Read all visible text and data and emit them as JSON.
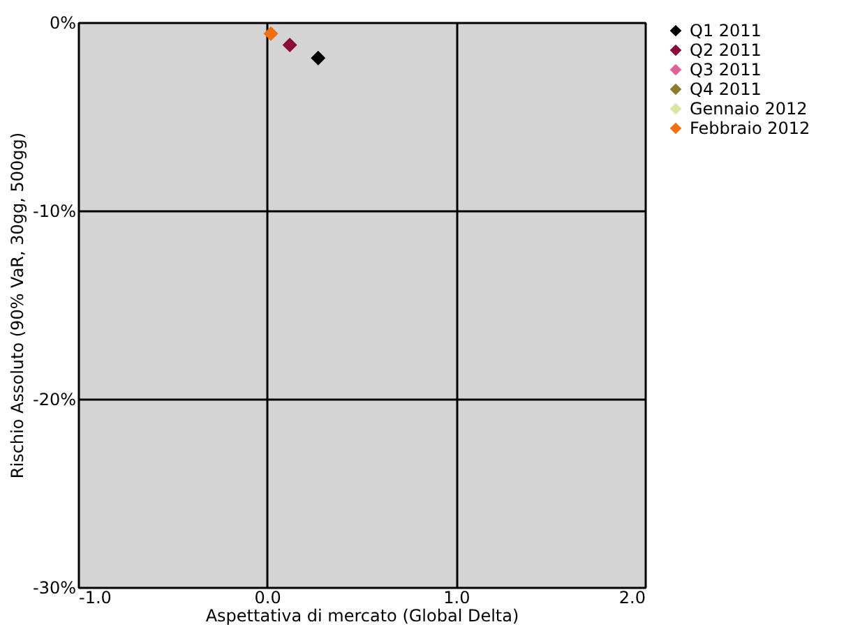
{
  "chart_data": {
    "type": "scatter",
    "xlabel": "Aspettativa di mercato (Global Delta)",
    "ylabel": "Rischio Assoluto (90% VaR, 30gg, 500gg)",
    "xlim": [
      -1,
      2
    ],
    "xticks": [
      {
        "value": -1,
        "label": "-1.0"
      },
      {
        "value": 0,
        "label": "0.0"
      },
      {
        "value": 1,
        "label": "1.0"
      },
      {
        "value": 2,
        "label": "2.0"
      }
    ],
    "ylim": [
      -30,
      0
    ],
    "yticks": [
      {
        "value": -30,
        "label": "-30%"
      },
      {
        "value": -20,
        "label": "-20%"
      },
      {
        "value": -10,
        "label": "-10%"
      },
      {
        "value": 0,
        "label": "0%"
      }
    ],
    "grid": true,
    "legend": "top right",
    "marker": "diamond",
    "series": [
      {
        "name": "Q1 2011",
        "color": "#000000",
        "x": [
          0.27
        ],
        "values": [
          -1.9
        ]
      },
      {
        "name": "Q2 2011",
        "color": "#8b0a3a",
        "x": [
          0.12
        ],
        "values": [
          -1.2
        ]
      },
      {
        "name": "Q3 2011",
        "color": "#e0609a",
        "x": [
          null
        ],
        "values": [
          null
        ]
      },
      {
        "name": "Q4 2011",
        "color": "#8b7d2a",
        "x": [
          null
        ],
        "values": [
          null
        ]
      },
      {
        "name": "Gennaio 2012",
        "color": "#d8e8a0",
        "x": [
          null
        ],
        "values": [
          null
        ]
      },
      {
        "name": "Febbraio 2012",
        "color": "#f07010",
        "x": [
          0.02
        ],
        "values": [
          -0.6
        ]
      }
    ]
  }
}
